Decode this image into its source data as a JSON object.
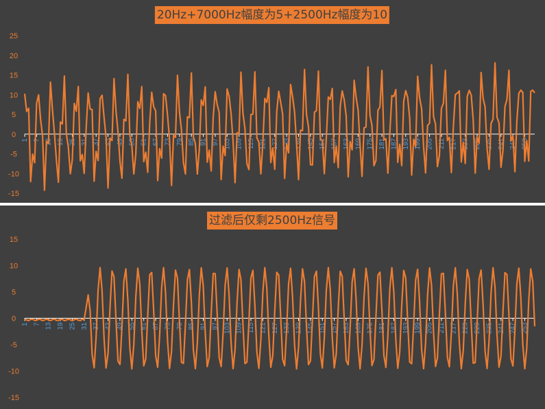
{
  "colors": {
    "background": "#3f3f3f",
    "line": "#ed7d31",
    "tick_text": "#5b9bd5",
    "ytick_text": "#ed7d31",
    "axis": "#ffffff",
    "title_bg": "#ed7d31",
    "title_text": "#404040"
  },
  "chart_data": [
    {
      "type": "line",
      "title": "20Hz+7000Hz幅度为5+2500Hz幅度为10",
      "xlabel": "",
      "ylabel": "",
      "ylim": [
        -15,
        25
      ],
      "yticks": [
        -15,
        -10,
        -5,
        0,
        5,
        10,
        15,
        20,
        25
      ],
      "xlim": [
        1,
        258
      ],
      "xticks": [
        1,
        7,
        13,
        19,
        25,
        31,
        37,
        43,
        49,
        55,
        61,
        67,
        73,
        79,
        85,
        91,
        97,
        103,
        109,
        115,
        121,
        127,
        133,
        139,
        145,
        151,
        157,
        163,
        169,
        175,
        181,
        187,
        193,
        199,
        205,
        211,
        217,
        223,
        229,
        235,
        241,
        247,
        253
      ],
      "xtick_labels": [
        "1",
        "7",
        "13",
        "19",
        "25",
        "31",
        "37",
        "43",
        "49",
        "55",
        "61",
        "67",
        "73",
        "79",
        "85",
        "91",
        "97",
        "103",
        "109",
        "115",
        "121",
        "127",
        "133",
        "139",
        "145",
        "151",
        "157",
        "163",
        "169",
        "175",
        "181",
        "187",
        "193",
        "199",
        "205",
        "211",
        "217",
        "223",
        "229",
        "235",
        "241",
        "247",
        "253"
      ],
      "grid": false,
      "legend": "none",
      "signal": {
        "samples": 258,
        "offset": 0,
        "drift_per_sample": 0.013,
        "components": [
          {
            "amplitude": 10,
            "cycles_per_sample": 0.1565
          },
          {
            "amplitude": 5,
            "cycles_per_sample": 0.438
          }
        ]
      }
    },
    {
      "type": "line",
      "title": "过滤后仅剩2500Hz信号",
      "xlabel": "",
      "ylabel": "",
      "ylim": [
        -15,
        15
      ],
      "yticks": [
        -15,
        -10,
        -5,
        0,
        5,
        10,
        15
      ],
      "xlim": [
        1,
        258
      ],
      "xticks": [
        1,
        7,
        13,
        19,
        25,
        31,
        37,
        43,
        49,
        55,
        61,
        67,
        73,
        79,
        85,
        91,
        97,
        103,
        109,
        115,
        121,
        127,
        133,
        139,
        145,
        151,
        157,
        163,
        169,
        175,
        181,
        187,
        193,
        199,
        205,
        211,
        217,
        223,
        229,
        235,
        241,
        247,
        253
      ],
      "xtick_labels": [
        "1",
        "7",
        "13",
        "19",
        "25",
        "31",
        "37",
        "43",
        "49",
        "55",
        "61",
        "67",
        "73",
        "79",
        "85",
        "91",
        "97",
        "103",
        "109",
        "115",
        "121",
        "127",
        "133",
        "139",
        "145",
        "151",
        "157",
        "163",
        "169",
        "175",
        "181",
        "187",
        "193",
        "199",
        "205",
        "211",
        "217",
        "223",
        "229",
        "235",
        "241",
        "247",
        "253"
      ],
      "grid": false,
      "legend": "none",
      "signal": {
        "samples": 258,
        "startup_until": 32,
        "startup_level": -0.3,
        "amplitude": 9.6,
        "cycles_per_sample": 0.1565
      }
    }
  ]
}
